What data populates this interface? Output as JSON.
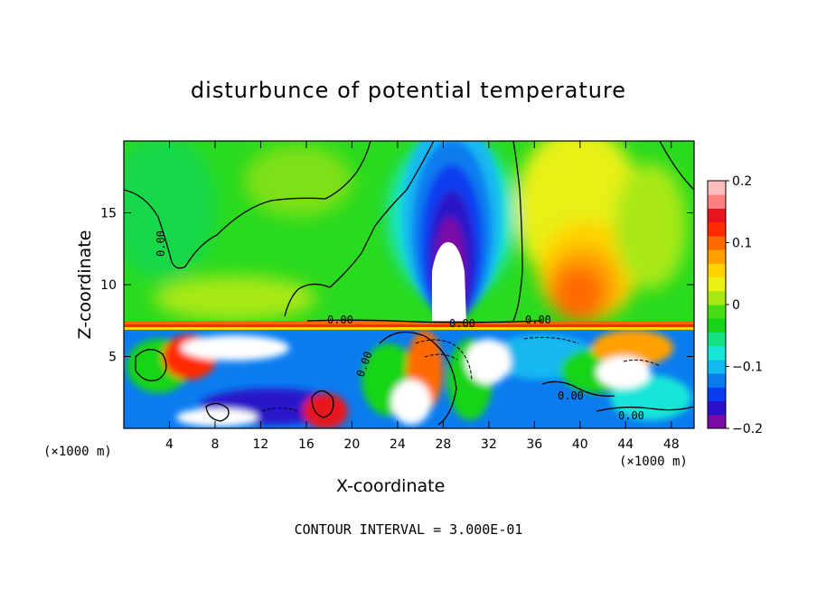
{
  "chart_data": {
    "type": "heatmap",
    "title": "disturbunce of potential temperature",
    "xlabel": "X-coordinate",
    "ylabel": "Z-coordinate",
    "x_unit": "(×1000 m)",
    "y_unit": "(×1000 m)",
    "xlim": [
      0,
      50
    ],
    "ylim": [
      0,
      20
    ],
    "x_ticks": [
      "4",
      "8",
      "12",
      "16",
      "20",
      "24",
      "28",
      "32",
      "36",
      "40",
      "44",
      "48"
    ],
    "y_ticks": [
      "5",
      "10",
      "15"
    ],
    "colorbar": {
      "range": [
        -0.2,
        0.2
      ],
      "tick_labels": [
        "0.2",
        "0.1",
        "0",
        "−0.1",
        "−0.2"
      ],
      "colors": [
        "#7a0aa6",
        "#2a12c8",
        "#0a3cf0",
        "#0a7cf0",
        "#12b8f0",
        "#18e6d8",
        "#16e080",
        "#18d418",
        "#46dc16",
        "#a8e814",
        "#e8f014",
        "#ffd200",
        "#ffa000",
        "#ff6a00",
        "#ff2a00",
        "#e8141e",
        "#ff8080",
        "#ffbcbc"
      ]
    },
    "contour_labels": [
      "0.00",
      "0.00",
      "0.00",
      "0.00",
      "0.00",
      "0.00",
      "0.00"
    ],
    "features": [
      {
        "description": "cold anomaly column",
        "x_center": 29,
        "z_range": [
          7.5,
          20
        ],
        "min_value": -0.2
      },
      {
        "description": "warm anomaly region",
        "x_center": 40,
        "z_range": [
          7.5,
          17
        ],
        "max_value": 0.13
      },
      {
        "description": "stratified interface",
        "z": 7.3
      }
    ]
  },
  "footer": {
    "contour_interval": "CONTOUR INTERVAL = 3.000E-01"
  }
}
